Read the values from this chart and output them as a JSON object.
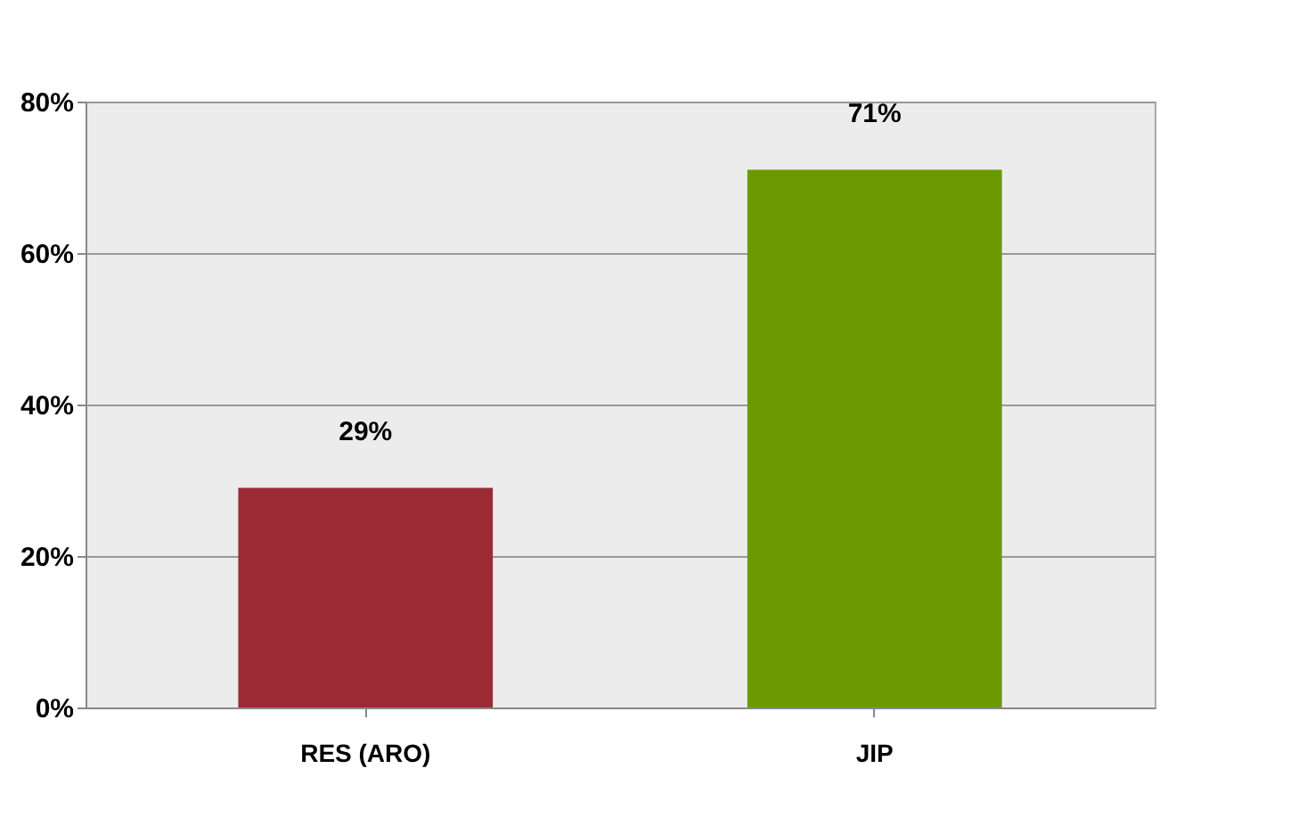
{
  "chart_data": {
    "type": "bar",
    "categories": [
      "RES (ARO)",
      "JIP"
    ],
    "values": [
      29,
      71
    ],
    "colors": [
      "#9b2a35",
      "#6a9a00"
    ],
    "value_labels": [
      "29%",
      "71%"
    ],
    "ylim": [
      0,
      80
    ],
    "yticks": [
      {
        "value": 0,
        "label": "0%"
      },
      {
        "value": 20,
        "label": "20%"
      },
      {
        "value": 40,
        "label": "40%"
      },
      {
        "value": 60,
        "label": "60%"
      },
      {
        "value": 80,
        "label": "80%"
      }
    ],
    "grid": "y"
  }
}
